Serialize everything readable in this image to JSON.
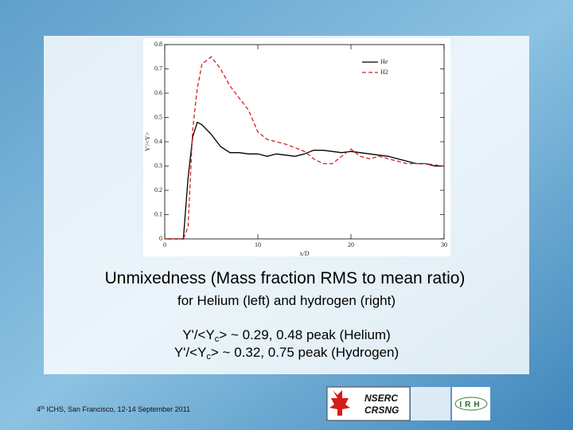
{
  "chart_data": {
    "type": "line",
    "xlabel": "x/D",
    "ylabel": "Y'/<Y>",
    "x": [
      0,
      1,
      2,
      2.5,
      3,
      3.5,
      4,
      5,
      6,
      7,
      8,
      9,
      10,
      11,
      12,
      13,
      14,
      15,
      16,
      17,
      18,
      19,
      20,
      21,
      22,
      23,
      24,
      25,
      26,
      27,
      28,
      29,
      30
    ],
    "series": [
      {
        "name": "He",
        "color": "#000000",
        "dash": false,
        "values": [
          0,
          0,
          0,
          0.25,
          0.42,
          0.48,
          0.47,
          0.43,
          0.38,
          0.355,
          0.355,
          0.35,
          0.35,
          0.34,
          0.35,
          0.345,
          0.34,
          0.35,
          0.365,
          0.365,
          0.36,
          0.355,
          0.36,
          0.355,
          0.35,
          0.345,
          0.34,
          0.33,
          0.32,
          0.31,
          0.31,
          0.3,
          0.3
        ]
      },
      {
        "name": "H2",
        "color": "#d42020",
        "dash": true,
        "values": [
          0,
          0,
          0,
          0.05,
          0.45,
          0.62,
          0.72,
          0.75,
          0.7,
          0.63,
          0.58,
          0.53,
          0.44,
          0.41,
          0.4,
          0.39,
          0.375,
          0.36,
          0.33,
          0.31,
          0.31,
          0.34,
          0.37,
          0.34,
          0.33,
          0.34,
          0.33,
          0.32,
          0.31,
          0.31,
          0.31,
          0.305,
          0.3
        ]
      }
    ],
    "xlim": [
      0,
      30
    ],
    "xticks": [
      0,
      10,
      20,
      30
    ],
    "ylim": [
      0,
      0.8
    ],
    "yticks": [
      0,
      0.1,
      0.2,
      0.3,
      0.4,
      0.5,
      0.6,
      0.7,
      0.8
    ],
    "legend": "upper right"
  },
  "slide": {
    "title": "Unmixedness (Mass fraction RMS to mean ratio)",
    "subtitle": "for Helium (left) and hydrogen (right)",
    "lines": [
      [
        "Y'/<Y",
        "c",
        "> ~ 0.29,  0.48 peak (Helium)"
      ],
      [
        "Y'/<Y",
        "c",
        "> ~ 0.32, 0.75 peak (Hydrogen)"
      ]
    ],
    "footer": [
      "4",
      "th",
      " ICHS, San Francisco, 12-14 September 2011"
    ],
    "logos": [
      "NSERC",
      "CRSNG",
      "IRH"
    ]
  }
}
